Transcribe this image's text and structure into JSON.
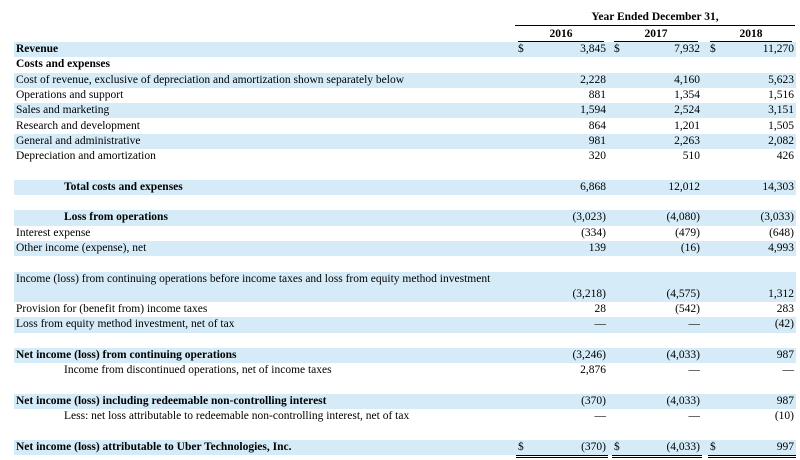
{
  "header": {
    "period": "Year Ended December 31,",
    "years": [
      "2016",
      "2017",
      "2018"
    ]
  },
  "table": {
    "rows": [
      {
        "label": "Revenue",
        "currency": [
          "$",
          "$",
          "$"
        ],
        "values": [
          "3,845",
          "7,932",
          "11,270"
        ]
      },
      {
        "label": "Costs and expenses"
      },
      {
        "label": "Cost of revenue, exclusive of depreciation and amortization shown separately below",
        "values": [
          "2,228",
          "4,160",
          "5,623"
        ]
      },
      {
        "label": "Operations and support",
        "values": [
          "881",
          "1,354",
          "1,516"
        ]
      },
      {
        "label": "Sales and marketing",
        "values": [
          "1,594",
          "2,524",
          "3,151"
        ]
      },
      {
        "label": "Research and development",
        "values": [
          "864",
          "1,201",
          "1,505"
        ]
      },
      {
        "label": "General and administrative",
        "values": [
          "981",
          "2,263",
          "2,082"
        ]
      },
      {
        "label": "Depreciation and amortization",
        "values": [
          "320",
          "510",
          "426"
        ]
      },
      {
        "label": "Total costs and expenses",
        "values": [
          "6,868",
          "12,012",
          "14,303"
        ]
      },
      {
        "label": "Loss from operations",
        "values": [
          "(3,023)",
          "(4,080)",
          "(3,033)"
        ]
      },
      {
        "label": "Interest expense",
        "values": [
          "(334)",
          "(479)",
          "(648)"
        ]
      },
      {
        "label": "Other income (expense), net",
        "values": [
          "139",
          "(16)",
          "4,993"
        ]
      },
      {
        "label": "Income (loss) from continuing operations before income taxes and loss from equity method investment",
        "values": [
          "(3,218)",
          "(4,575)",
          "1,312"
        ]
      },
      {
        "label": "Provision for (benefit from) income taxes",
        "values": [
          "28",
          "(542)",
          "283"
        ]
      },
      {
        "label": "Loss from equity method investment, net of tax",
        "values": [
          "—",
          "—",
          "(42)"
        ]
      },
      {
        "label": "Net income (loss) from continuing operations",
        "values": [
          "(3,246)",
          "(4,033)",
          "987"
        ]
      },
      {
        "label": "Income from discontinued operations, net of income taxes",
        "values": [
          "2,876",
          "—",
          "—"
        ]
      },
      {
        "label": "Net income (loss) including redeemable non-controlling interest",
        "values": [
          "(370)",
          "(4,033)",
          "987"
        ]
      },
      {
        "label": "Less: net loss attributable to redeemable non-controlling interest, net of tax",
        "values": [
          "—",
          "—",
          "(10)"
        ]
      },
      {
        "label": "Net income (loss) attributable to Uber Technologies, Inc.",
        "currency": [
          "$",
          "$",
          "$"
        ],
        "values": [
          "(370)",
          "(4,033)",
          "997"
        ]
      }
    ]
  }
}
